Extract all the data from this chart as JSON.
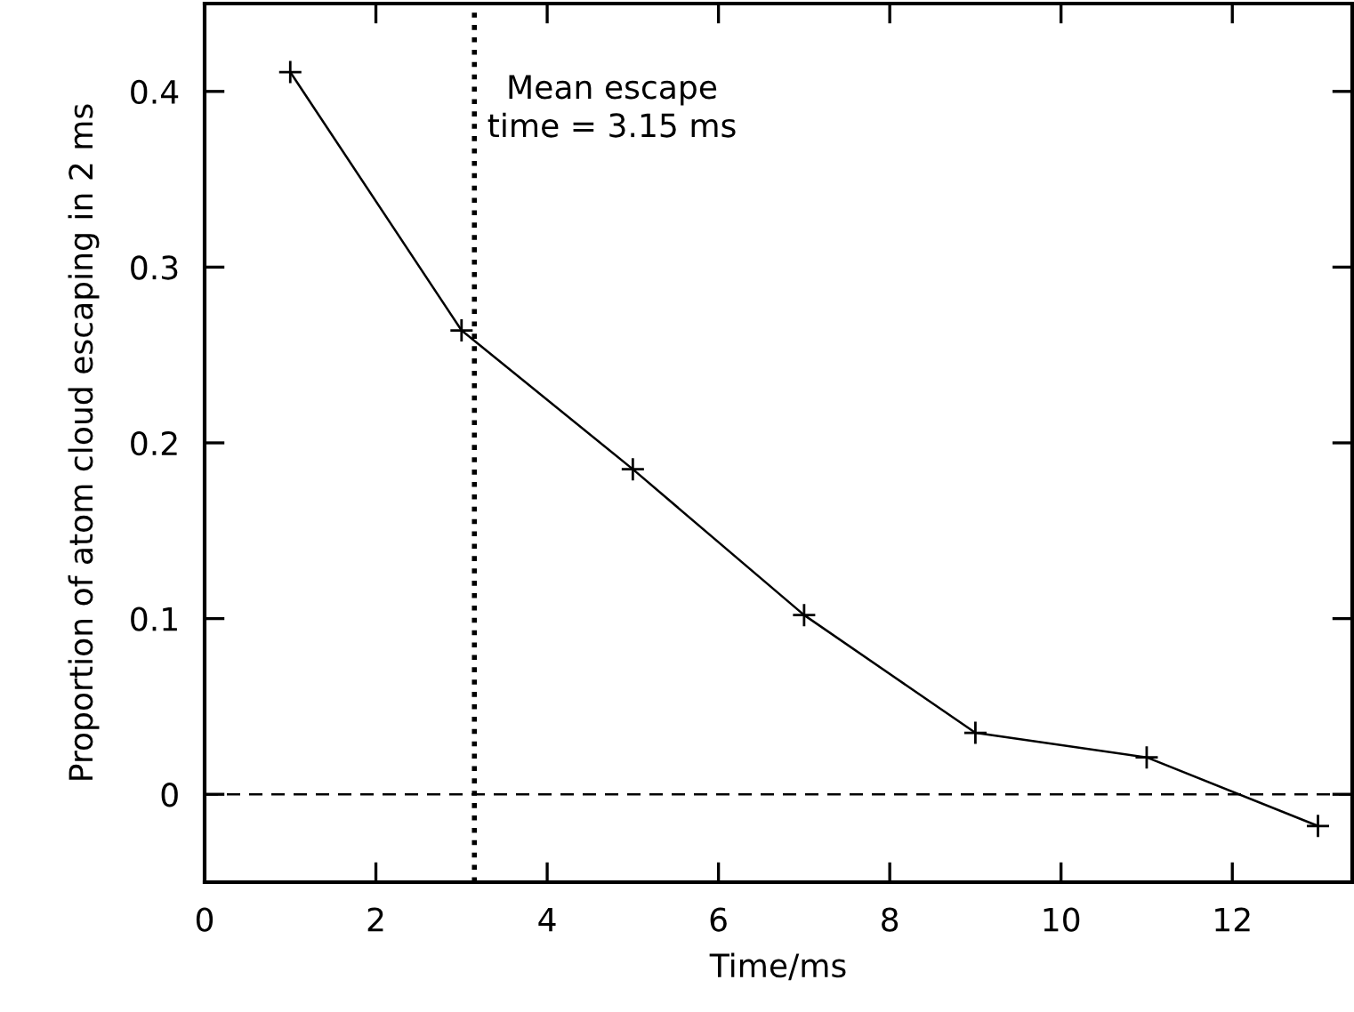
{
  "chart_data": {
    "type": "line",
    "xlabel": "Time/ms",
    "ylabel": "Proportion of atom cloud escaping in 2 ms",
    "x": [
      1,
      3,
      5,
      7,
      9,
      11,
      13
    ],
    "series": [
      {
        "color": "#000000",
        "values": [
          0.411,
          0.264,
          0.185,
          0.102,
          0.035,
          0.021,
          -0.018
        ]
      }
    ],
    "marker": "cross",
    "line_style": "solid",
    "xlim": [
      0,
      13.4
    ],
    "xticks": [
      0,
      2,
      4,
      6,
      8,
      10,
      12
    ],
    "ylim": [
      -0.05,
      0.45
    ],
    "yticks": [
      0,
      0.1,
      0.2,
      0.3,
      0.4
    ],
    "ref_lines": [
      {
        "axis": "x",
        "value": 3.15,
        "label": "Mean escape\ntime = 3.15 ms",
        "color": "#000000",
        "line_style": "dotted"
      },
      {
        "axis": "y",
        "value": 0,
        "color": "#000000",
        "line_style": "dashed"
      }
    ],
    "grid": false,
    "legend": false
  }
}
